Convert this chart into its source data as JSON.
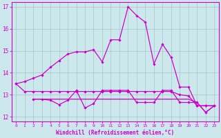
{
  "xlabel": "Windchill (Refroidissement éolien,°C)",
  "background_color": "#cce8ec",
  "grid_color": "#aacccc",
  "line_color": "#cc00cc",
  "xlim_min": -0.5,
  "xlim_max": 23.5,
  "ylim_min": 11.8,
  "ylim_max": 17.2,
  "yticks": [
    12,
    13,
    14,
    15,
    16,
    17
  ],
  "xticks": [
    0,
    1,
    2,
    3,
    4,
    5,
    6,
    7,
    8,
    9,
    10,
    11,
    12,
    13,
    14,
    15,
    16,
    17,
    18,
    19,
    20,
    21,
    22,
    23
  ],
  "line1_x": [
    0,
    1,
    2,
    3,
    4,
    5,
    6,
    7,
    8,
    9,
    10,
    11,
    12,
    13,
    14,
    15,
    16,
    17,
    18,
    19,
    20,
    21,
    22,
    23
  ],
  "line1_y": [
    13.5,
    13.6,
    13.75,
    13.9,
    14.25,
    14.55,
    14.85,
    14.95,
    14.95,
    15.05,
    14.5,
    15.5,
    15.5,
    17.0,
    16.6,
    16.3,
    14.4,
    15.3,
    14.7,
    13.35,
    13.35,
    12.5,
    12.5,
    12.5
  ],
  "line2_x": [
    0,
    1,
    2,
    3,
    4,
    5,
    6,
    7,
    8,
    9,
    10,
    11,
    12,
    13,
    14,
    15,
    16,
    17,
    18,
    19,
    20,
    21,
    22,
    23
  ],
  "line2_y": [
    13.5,
    13.15,
    13.15,
    13.15,
    13.15,
    13.15,
    13.15,
    13.15,
    13.15,
    13.15,
    13.15,
    13.15,
    13.15,
    13.15,
    13.15,
    13.15,
    13.15,
    13.15,
    13.15,
    13.0,
    12.95,
    12.5,
    12.5,
    12.5
  ],
  "line3_x": [
    2,
    3,
    4,
    5,
    6,
    7,
    8,
    9,
    10,
    11,
    12,
    13,
    14,
    15,
    16,
    17,
    18,
    19,
    20,
    21,
    22,
    23
  ],
  "line3_y": [
    12.8,
    12.8,
    12.75,
    12.55,
    12.75,
    13.2,
    12.4,
    12.6,
    13.2,
    13.2,
    13.2,
    13.2,
    12.65,
    12.65,
    12.65,
    13.2,
    13.2,
    12.65,
    12.65,
    12.65,
    12.2,
    12.5
  ],
  "line4_x": [
    2,
    3,
    4,
    5,
    6,
    7,
    8,
    9,
    10,
    11,
    12,
    13,
    14,
    15,
    16,
    17,
    18,
    19,
    20,
    21,
    22,
    23
  ],
  "line4_y": [
    12.8,
    12.8,
    12.8,
    12.8,
    12.8,
    12.8,
    12.8,
    12.8,
    12.8,
    12.8,
    12.8,
    12.8,
    12.8,
    12.8,
    12.8,
    12.8,
    12.8,
    12.8,
    12.8,
    12.65,
    12.2,
    12.5
  ]
}
